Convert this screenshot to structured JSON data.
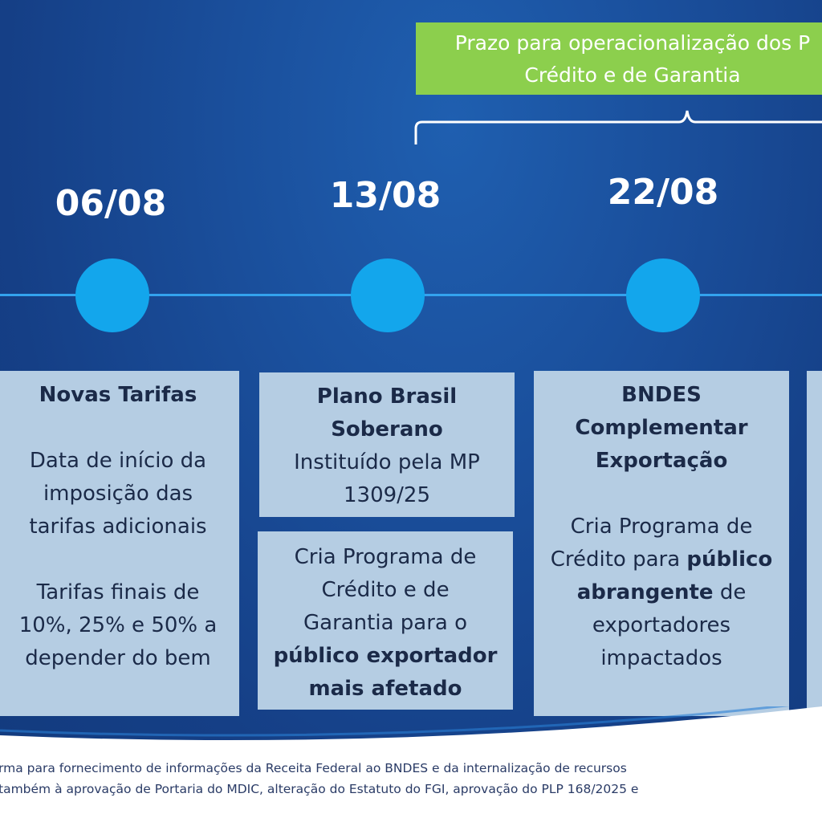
{
  "banner": {
    "line1": "Prazo para operacionalização dos P",
    "line2": "Crédito e de Garantia"
  },
  "dates": [
    "06/08",
    "13/08",
    "22/08"
  ],
  "cards": {
    "novas_tarifas": {
      "title": "Novas Tarifas",
      "text1": "Data de início da imposição das tarifas adicionais",
      "text2": "Tarifas finais de 10%, 25% e 50% a depender do bem"
    },
    "plano_brasil": {
      "title": "Plano Brasil Soberano",
      "text": "Instituído pela MP 1309/25"
    },
    "programa_credito": {
      "text_pre": "Cria Programa de Crédito e de Garantia para o",
      "text_bold": "público exportador mais afetado"
    },
    "bndes": {
      "title": "BNDES Complementar Exportação",
      "text_pre": "Cria Programa de Crédito para",
      "text_bold": "público abrangente",
      "text_post": "de exportadores impactados"
    }
  },
  "footnote": {
    "line1": "rma para  fornecimento de informações da Receita Federal ao BNDES e da internalização de recursos",
    "line2": " também à aprovação de  Portaria do MDIC, alteração do Estatuto do FGI, aprovação do PLP 168/2025 e"
  },
  "colors": {
    "background": "#1a4f9c",
    "banner": "#8ccf4d",
    "dot": "#13a6ec",
    "card": "#b5cde3",
    "card_text": "#1b2a48"
  }
}
